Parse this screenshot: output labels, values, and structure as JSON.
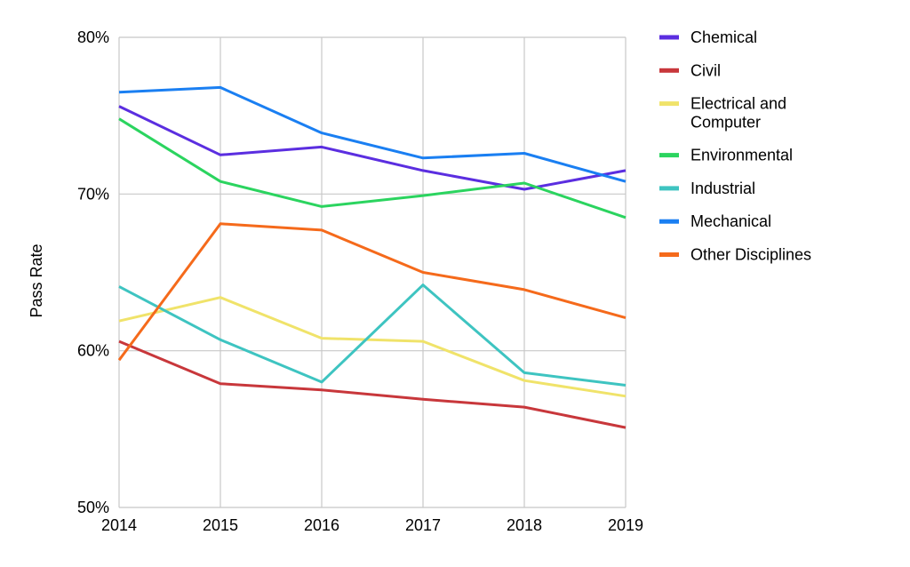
{
  "chart_data": {
    "type": "line",
    "title": "",
    "xlabel": "",
    "ylabel": "Pass Rate",
    "x": [
      "2014",
      "2015",
      "2016",
      "2017",
      "2018",
      "2019"
    ],
    "ylim": [
      0.5,
      0.8
    ],
    "yticks": [
      {
        "value": 0.5,
        "label": "50%"
      },
      {
        "value": 0.6,
        "label": "60%"
      },
      {
        "value": 0.7,
        "label": "70%"
      },
      {
        "value": 0.8,
        "label": "80%"
      }
    ],
    "grid": true,
    "legend_position": "right",
    "series": [
      {
        "name": "Chemical",
        "color": "#5b2ee0",
        "values": [
          0.756,
          0.725,
          0.73,
          0.715,
          0.703,
          0.715
        ]
      },
      {
        "name": "Civil",
        "color": "#c8373b",
        "values": [
          0.606,
          0.579,
          0.575,
          0.569,
          0.564,
          0.551
        ]
      },
      {
        "name": "Electrical and Computer",
        "color": "#f0e36a",
        "values": [
          0.619,
          0.634,
          0.608,
          0.606,
          0.581,
          0.571
        ]
      },
      {
        "name": "Environmental",
        "color": "#2bd45f",
        "values": [
          0.748,
          0.708,
          0.692,
          0.699,
          0.707,
          0.685
        ]
      },
      {
        "name": "Industrial",
        "color": "#3ec4c1",
        "values": [
          0.641,
          0.607,
          0.58,
          0.642,
          0.586,
          0.578
        ]
      },
      {
        "name": "Mechanical",
        "color": "#1a7ff2",
        "values": [
          0.765,
          0.768,
          0.739,
          0.723,
          0.726,
          0.708
        ]
      },
      {
        "name": "Other Disciplines",
        "color": "#f56a1b",
        "values": [
          0.594,
          0.681,
          0.677,
          0.65,
          0.639,
          0.621
        ]
      }
    ]
  }
}
